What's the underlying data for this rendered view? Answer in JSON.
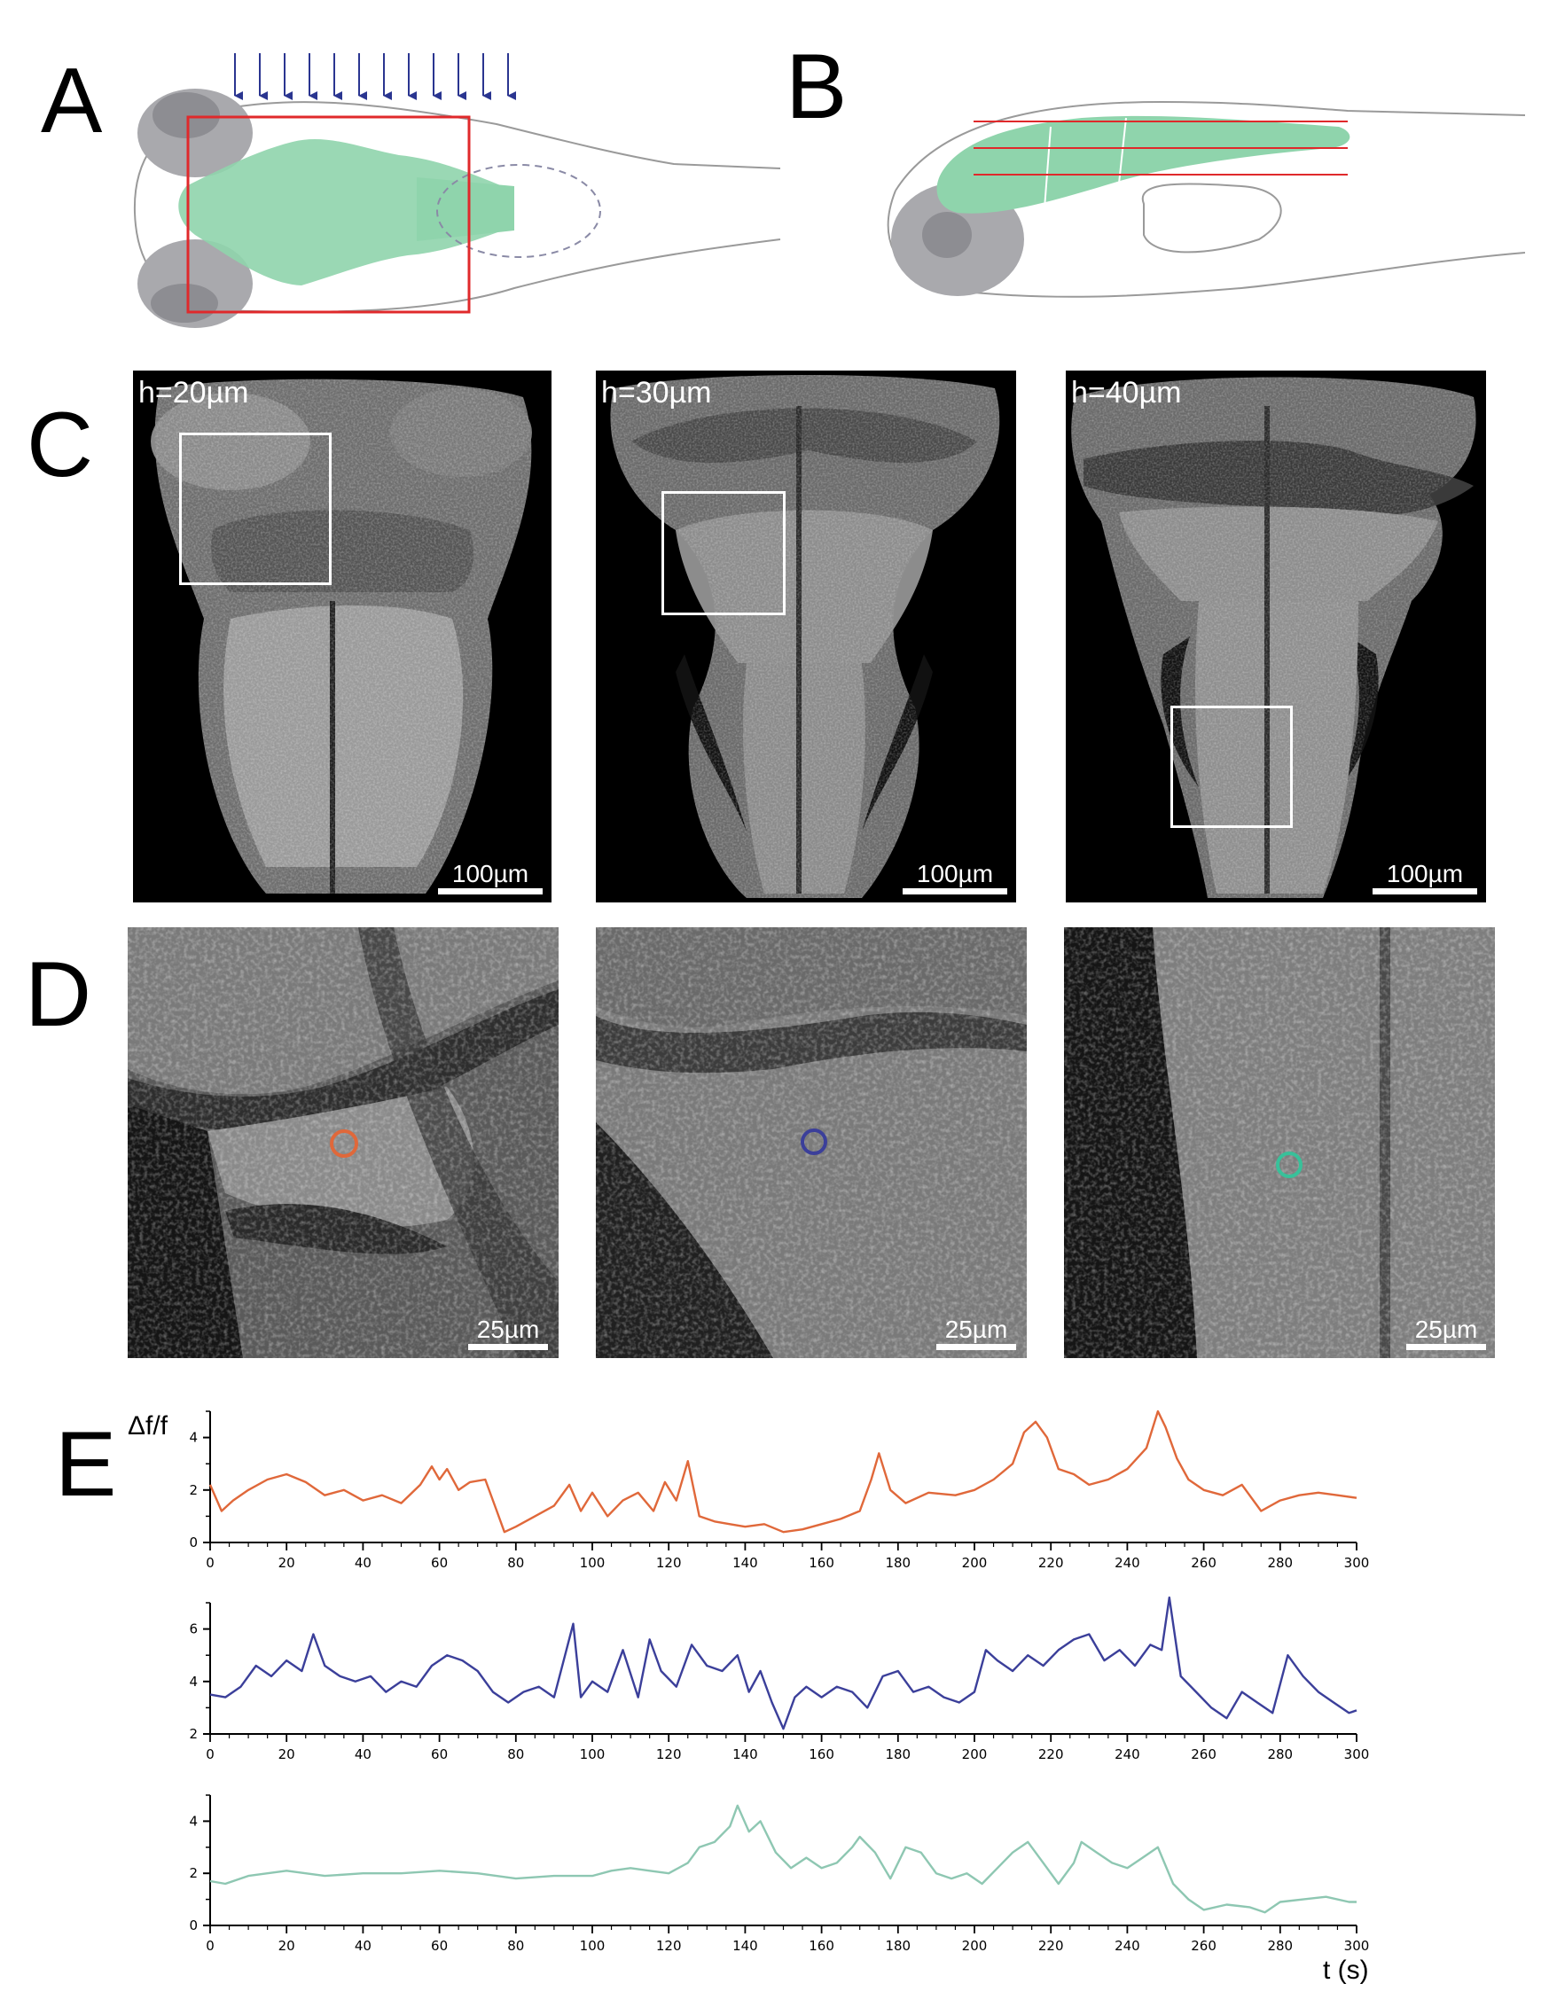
{
  "panels": {
    "a": "A",
    "b": "B",
    "c": "C",
    "d": "D",
    "e": "E"
  },
  "colors": {
    "brain": "#8fd4ac",
    "eye": "#a9a9ad",
    "eye_dark": "#8d8d92",
    "outline": "#9a9a9a",
    "roi_red": "#e0292b",
    "arrows": "#2a3590",
    "orange": "#e0683a",
    "blue": "#3b3f9a",
    "green": "#38c19a",
    "green_trace": "#8ec7b2"
  },
  "panel_c": [
    {
      "label": "h=20µm",
      "scale": "100µm"
    },
    {
      "label": "h=30µm",
      "scale": "100µm"
    },
    {
      "label": "h=40µm",
      "scale": "100µm"
    }
  ],
  "panel_d": [
    {
      "scale": "25µm",
      "marker_color": "#e0683a"
    },
    {
      "scale": "25µm",
      "marker_color": "#3b3f9a"
    },
    {
      "scale": "25µm",
      "marker_color": "#38c19a"
    }
  ],
  "chart_data": [
    {
      "type": "line",
      "ylabel": "Δf/f",
      "xlabel": "",
      "xlim": [
        0,
        300
      ],
      "ylim": [
        0,
        5
      ],
      "yticks": [
        0,
        2,
        4
      ],
      "xticks": [
        0,
        20,
        40,
        60,
        80,
        100,
        120,
        140,
        160,
        180,
        200,
        220,
        240,
        260,
        280,
        300
      ],
      "series": [
        {
          "color": "#e0683a",
          "x": [
            0,
            3,
            6,
            10,
            15,
            20,
            25,
            30,
            35,
            40,
            45,
            50,
            55,
            58,
            60,
            62,
            65,
            68,
            72,
            75,
            77,
            80,
            85,
            90,
            94,
            97,
            100,
            104,
            108,
            112,
            116,
            119,
            122,
            125,
            128,
            132,
            136,
            140,
            145,
            150,
            155,
            160,
            165,
            170,
            173,
            175,
            178,
            182,
            188,
            195,
            200,
            205,
            210,
            213,
            216,
            219,
            222,
            226,
            230,
            235,
            240,
            245,
            248,
            250,
            253,
            256,
            260,
            265,
            270,
            275,
            280,
            285,
            290,
            295,
            300
          ],
          "y": [
            2.2,
            1.2,
            1.6,
            2.0,
            2.4,
            2.6,
            2.3,
            1.8,
            2.0,
            1.6,
            1.8,
            1.5,
            2.2,
            2.9,
            2.4,
            2.8,
            2.0,
            2.3,
            2.4,
            1.2,
            0.4,
            0.6,
            1.0,
            1.4,
            2.2,
            1.2,
            1.9,
            1.0,
            1.6,
            1.9,
            1.2,
            2.3,
            1.6,
            3.1,
            1.0,
            0.8,
            0.7,
            0.6,
            0.7,
            0.4,
            0.5,
            0.7,
            0.9,
            1.2,
            2.4,
            3.4,
            2.0,
            1.5,
            1.9,
            1.8,
            2.0,
            2.4,
            3.0,
            4.2,
            4.6,
            4.0,
            2.8,
            2.6,
            2.2,
            2.4,
            2.8,
            3.6,
            5.0,
            4.4,
            3.2,
            2.4,
            2.0,
            1.8,
            2.2,
            1.2,
            1.6,
            1.8,
            1.9,
            1.8,
            1.7
          ]
        }
      ]
    },
    {
      "type": "line",
      "ylabel": "",
      "xlabel": "",
      "xlim": [
        0,
        300
      ],
      "ylim": [
        2,
        7
      ],
      "yticks": [
        2,
        4,
        6
      ],
      "xticks": [
        0,
        20,
        40,
        60,
        80,
        100,
        120,
        140,
        160,
        180,
        200,
        220,
        240,
        260,
        280,
        300
      ],
      "series": [
        {
          "color": "#3b3f9a",
          "x": [
            0,
            4,
            8,
            12,
            16,
            20,
            24,
            27,
            30,
            34,
            38,
            42,
            46,
            50,
            54,
            58,
            62,
            66,
            70,
            74,
            78,
            82,
            86,
            90,
            95,
            97,
            100,
            104,
            108,
            112,
            115,
            118,
            122,
            126,
            130,
            134,
            138,
            141,
            144,
            147,
            150,
            153,
            156,
            160,
            164,
            168,
            172,
            176,
            180,
            184,
            188,
            192,
            196,
            200,
            203,
            206,
            210,
            214,
            218,
            222,
            226,
            230,
            234,
            238,
            242,
            246,
            249,
            251,
            254,
            258,
            262,
            266,
            270,
            274,
            278,
            282,
            286,
            290,
            294,
            298,
            300
          ],
          "y": [
            3.5,
            3.4,
            3.8,
            4.6,
            4.2,
            4.8,
            4.4,
            5.8,
            4.6,
            4.2,
            4.0,
            4.2,
            3.6,
            4.0,
            3.8,
            4.6,
            5.0,
            4.8,
            4.4,
            3.6,
            3.2,
            3.6,
            3.8,
            3.4,
            6.2,
            3.4,
            4.0,
            3.6,
            5.2,
            3.4,
            5.6,
            4.4,
            3.8,
            5.4,
            4.6,
            4.4,
            5.0,
            3.6,
            4.4,
            3.2,
            2.2,
            3.4,
            3.8,
            3.4,
            3.8,
            3.6,
            3.0,
            4.2,
            4.4,
            3.6,
            3.8,
            3.4,
            3.2,
            3.6,
            5.2,
            4.8,
            4.4,
            5.0,
            4.6,
            5.2,
            5.6,
            5.8,
            4.8,
            5.2,
            4.6,
            5.4,
            5.2,
            7.2,
            4.2,
            3.6,
            3.0,
            2.6,
            3.6,
            3.2,
            2.8,
            5.0,
            4.2,
            3.6,
            3.2,
            2.8,
            2.9
          ]
        }
      ]
    },
    {
      "type": "line",
      "ylabel": "",
      "xlabel": "t (s)",
      "xlim": [
        0,
        300
      ],
      "ylim": [
        0,
        5
      ],
      "yticks": [
        0,
        2,
        4
      ],
      "xticks": [
        0,
        20,
        40,
        60,
        80,
        100,
        120,
        140,
        160,
        180,
        200,
        220,
        240,
        260,
        280,
        300
      ],
      "series": [
        {
          "color": "#8ec7b2",
          "x": [
            0,
            4,
            10,
            20,
            30,
            40,
            50,
            60,
            70,
            80,
            90,
            100,
            105,
            110,
            115,
            120,
            125,
            128,
            132,
            136,
            138,
            141,
            144,
            148,
            152,
            156,
            160,
            164,
            168,
            170,
            174,
            178,
            182,
            186,
            190,
            194,
            198,
            202,
            206,
            210,
            214,
            218,
            222,
            226,
            228,
            232,
            236,
            240,
            244,
            248,
            252,
            256,
            260,
            266,
            272,
            276,
            280,
            286,
            292,
            298,
            300
          ],
          "y": [
            1.7,
            1.6,
            1.9,
            2.1,
            1.9,
            2.0,
            2.0,
            2.1,
            2.0,
            1.8,
            1.9,
            1.9,
            2.1,
            2.2,
            2.1,
            2.0,
            2.4,
            3.0,
            3.2,
            3.8,
            4.6,
            3.6,
            4.0,
            2.8,
            2.2,
            2.6,
            2.2,
            2.4,
            3.0,
            3.4,
            2.8,
            1.8,
            3.0,
            2.8,
            2.0,
            1.8,
            2.0,
            1.6,
            2.2,
            2.8,
            3.2,
            2.4,
            1.6,
            2.4,
            3.2,
            2.8,
            2.4,
            2.2,
            2.6,
            3.0,
            1.6,
            1.0,
            0.6,
            0.8,
            0.7,
            0.5,
            0.9,
            1.0,
            1.1,
            0.9,
            0.9
          ]
        }
      ]
    }
  ]
}
